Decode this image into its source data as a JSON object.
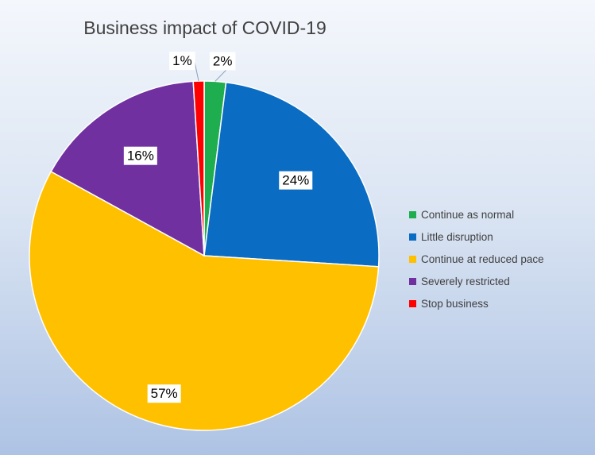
{
  "chart_data": {
    "type": "pie",
    "title": "Business impact of COVID-19",
    "categories": [
      "Continue as normal",
      "Little disruption",
      "Continue at reduced pace",
      "Severely restricted",
      "Stop business"
    ],
    "values": [
      2,
      24,
      57,
      16,
      1
    ],
    "value_labels": [
      "2%",
      "24%",
      "57%",
      "16%",
      "1%"
    ],
    "colors": [
      "#1fae4f",
      "#0a6cc2",
      "#ffc000",
      "#7030a0",
      "#ff0000"
    ],
    "legend_position": "right",
    "start_angle_deg": 0,
    "direction": "clockwise"
  }
}
